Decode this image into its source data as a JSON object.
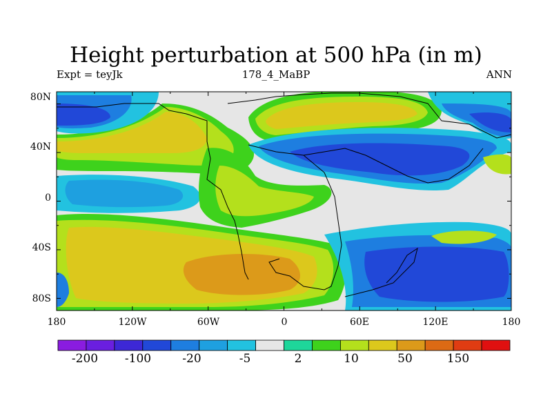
{
  "title": "Height perturbation at 500 hPa (in m)",
  "subtitle_left": "Expt = teyJk",
  "subtitle_center": "178_4_MaBP",
  "subtitle_right": "ANN",
  "lat_labels": [
    "80N",
    "40N",
    "0",
    "40S",
    "80S"
  ],
  "lon_labels": [
    "180",
    "120W",
    "60W",
    "0",
    "60E",
    "120E",
    "180"
  ],
  "colorbar": {
    "labels": [
      "-200",
      "-100",
      "-20",
      "-5",
      "2",
      "10",
      "50",
      "150"
    ],
    "colors": [
      "#8a1ce0",
      "#6a1fe0",
      "#3d28d6",
      "#2148d8",
      "#1e7ee0",
      "#1ea0e0",
      "#22c2e0",
      "#e6e6e6",
      "#1ed69a",
      "#3ed21c",
      "#b4e01c",
      "#dcc81c",
      "#dc9a1a",
      "#dc6a14",
      "#e03c12",
      "#e01010"
    ]
  }
}
